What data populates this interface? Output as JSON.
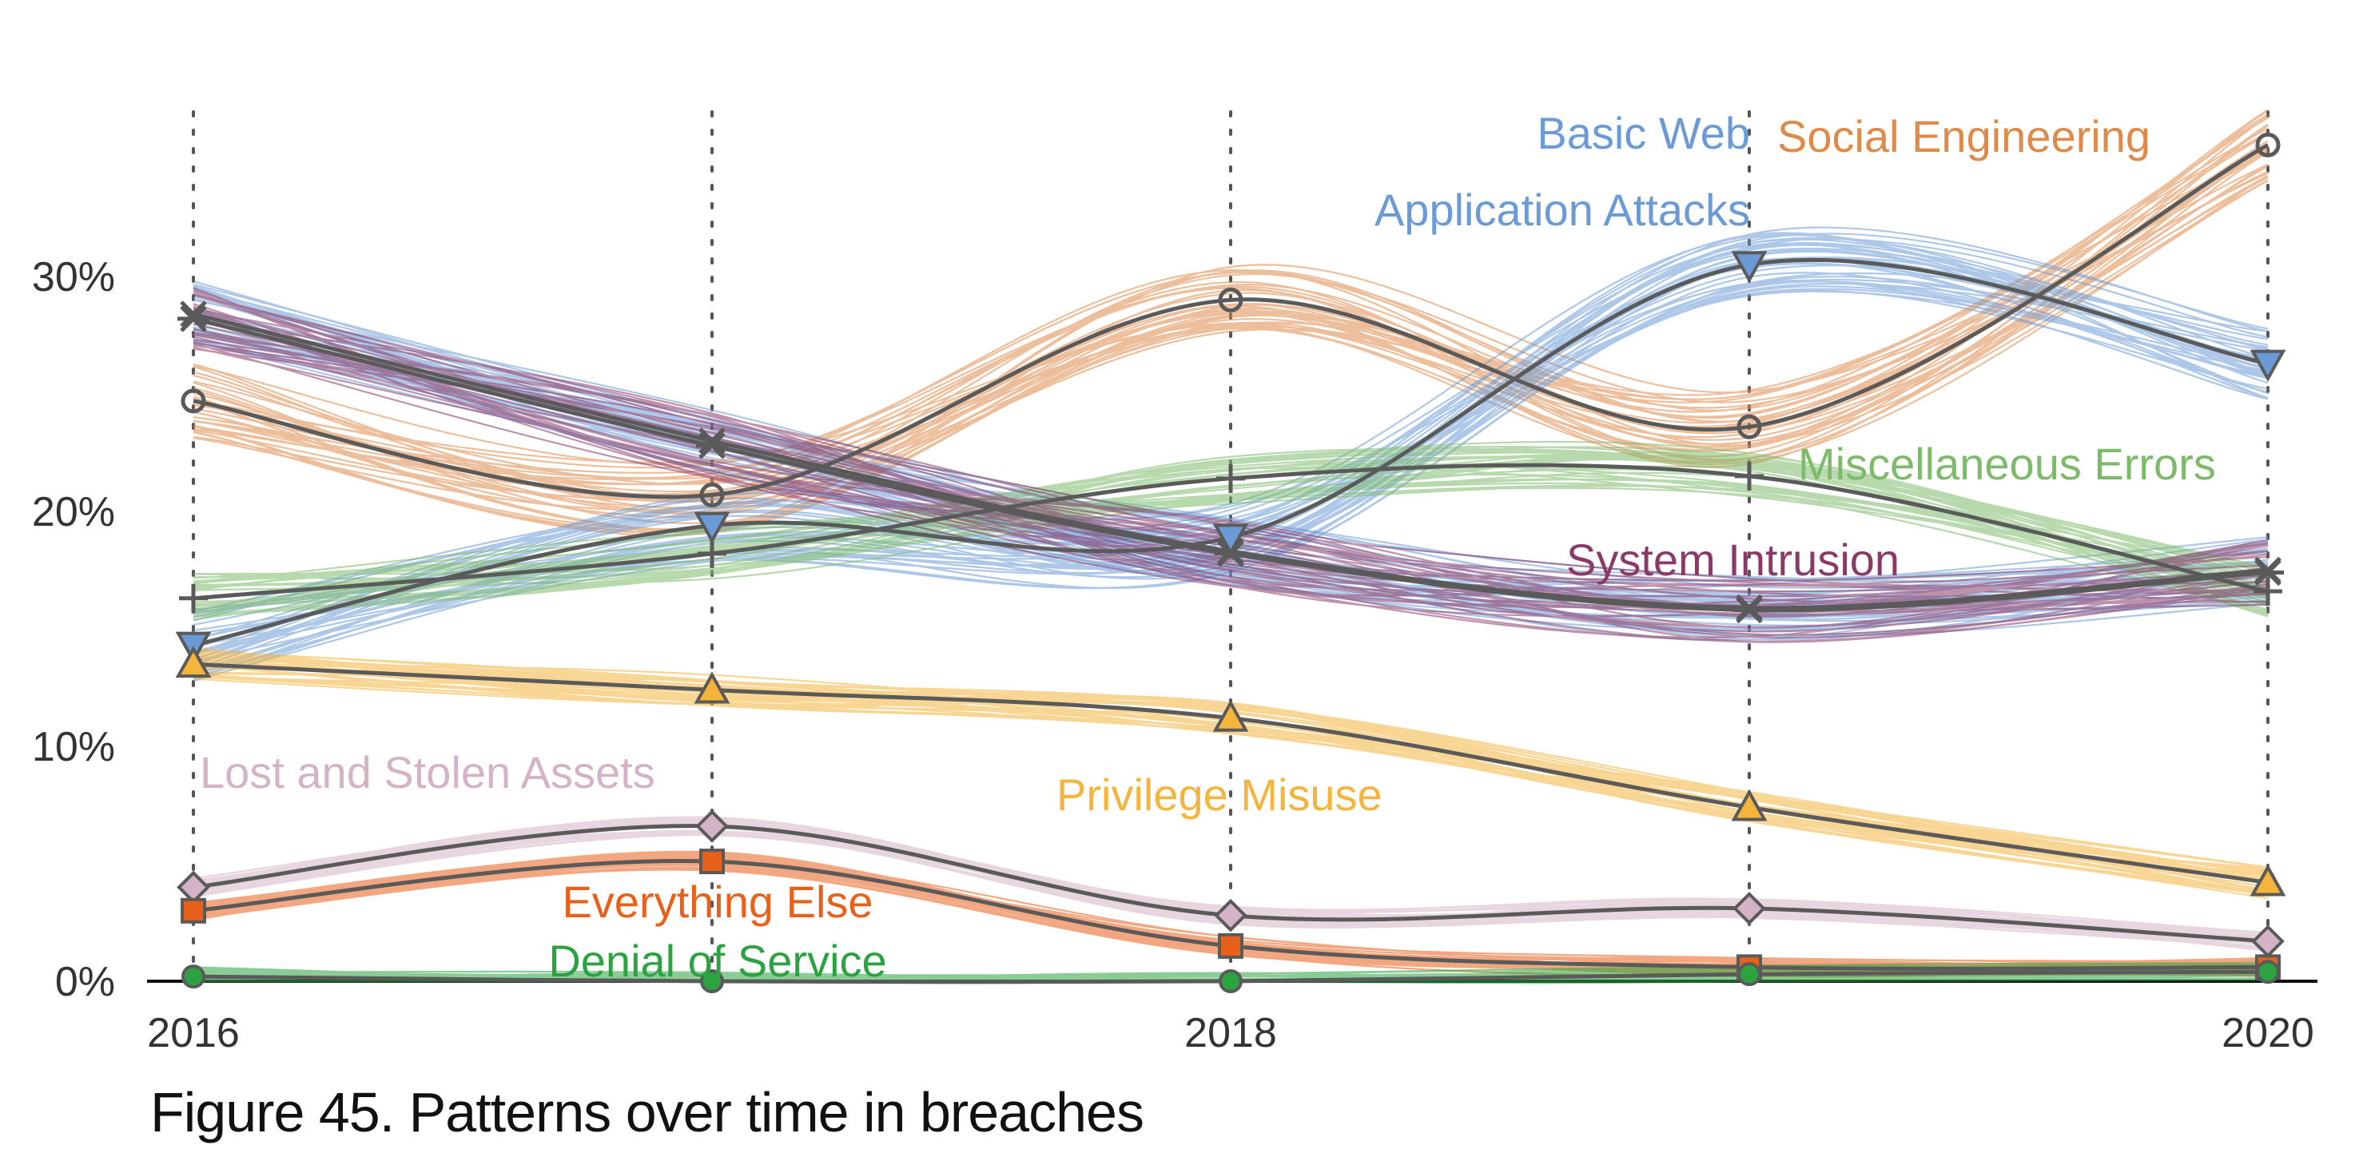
{
  "caption": "Figure 45. Patterns over time in breaches",
  "chart_data": {
    "type": "line",
    "title": "",
    "xlabel": "",
    "ylabel": "",
    "x": [
      2016,
      2017,
      2018,
      2019,
      2020
    ],
    "x_tick_labels": [
      "2016",
      "2018",
      "2020"
    ],
    "y_ticks": [
      "0%",
      "10%",
      "20%",
      "30%"
    ],
    "ylim": [
      0,
      36
    ],
    "grid": "vertical dotted lines at each year",
    "legend": "direct labels",
    "series": [
      {
        "name": "Social Engineering",
        "values": [
          24.7,
          20.7,
          29.0,
          23.6,
          35.6
        ],
        "color": "#e08a4a",
        "marker": "circle"
      },
      {
        "name": "Basic Web",
        "values": [
          28.4,
          23.0,
          18.3,
          15.9,
          17.5
        ],
        "color": "#6b9bd6",
        "marker": "x"
      },
      {
        "name": "Application Attacks",
        "values": [
          14.3,
          19.4,
          18.9,
          30.5,
          26.3
        ],
        "color": "#6b9bd6",
        "marker": "triangle-down"
      },
      {
        "name": "Miscellaneous Errors",
        "values": [
          16.3,
          18.2,
          21.4,
          21.5,
          16.6
        ],
        "color": "#7dbb6b",
        "marker": "plus"
      },
      {
        "name": "System Intrusion",
        "values": [
          28.2,
          22.8,
          18.2,
          15.8,
          17.4
        ],
        "color": "#8b3a68",
        "marker": "star"
      },
      {
        "name": "Privilege Misuse",
        "values": [
          13.5,
          12.4,
          11.2,
          7.4,
          4.2
        ],
        "color": "#f5b43c",
        "marker": "triangle-up"
      },
      {
        "name": "Lost and Stolen Assets",
        "values": [
          4.0,
          6.6,
          2.8,
          3.1,
          1.7
        ],
        "color": "#d4b3c6",
        "marker": "diamond"
      },
      {
        "name": "Everything Else",
        "values": [
          3.0,
          5.1,
          1.5,
          0.6,
          0.6
        ],
        "color": "#e8611a",
        "marker": "square"
      },
      {
        "name": "Denial of Service",
        "values": [
          0.2,
          0.0,
          0.0,
          0.3,
          0.4
        ],
        "color": "#2aa340",
        "marker": "circle-filled"
      }
    ]
  }
}
